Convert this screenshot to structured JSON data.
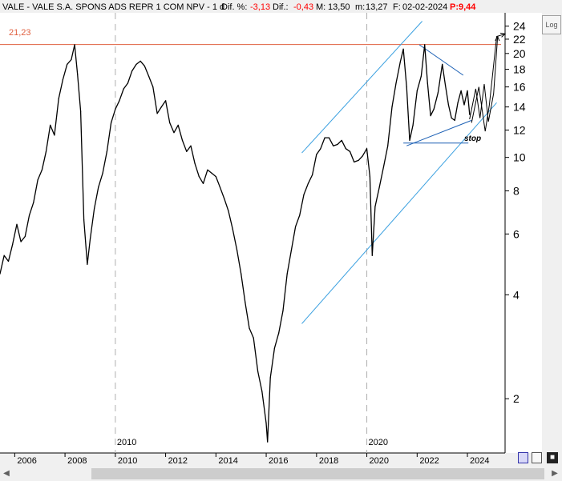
{
  "header": {
    "title": "VALE - VALE S.A. SPONS ADS REPR 1 COM NPV - 1 d",
    "dif_pct_label": "Dif. %:",
    "dif_pct_value": "-3,13",
    "dif_label": "Dif.:",
    "dif_value": "-0,43",
    "max_label": "M:",
    "max_value": "13,50",
    "min_label": "m:",
    "min_value": "13,27",
    "date_label": "F:",
    "date_value": "02-02-2024",
    "p_label": "P:",
    "p_value": "9,44"
  },
  "toolbar": {
    "log_label": "Log"
  },
  "annotations": {
    "resistance_label": "21,23",
    "stop_label": "stop"
  },
  "colors": {
    "price": "#000000",
    "resistance": "#e06040",
    "channel": "#3aa0e0",
    "triangle": "#1a5fb4",
    "header_red": "#ff0000"
  },
  "chart_data": {
    "type": "line",
    "title": "VALE - VALE S.A. SPONS ADS REPR 1 COM NPV - 1 d",
    "xlabel": "",
    "ylabel": "",
    "y_scale": "log",
    "ylim": [
      1.4,
      25
    ],
    "xlim": [
      "2005-06-01",
      "2025-07-01"
    ],
    "yticks": [
      2,
      4,
      6,
      8,
      10,
      12,
      14,
      16,
      18,
      20,
      22,
      24
    ],
    "xticks": [
      "2006",
      "2008",
      "2010",
      "2012",
      "2014",
      "2016",
      "2018",
      "2020",
      "2022",
      "2024"
    ],
    "year_markers": [
      "2010",
      "2020"
    ],
    "grid": false,
    "series": [
      {
        "x": [
          "2005-06-01",
          "2005-08-01",
          "2005-10-01",
          "2005-12-01",
          "2006-02-01",
          "2006-04-01",
          "2006-06-01",
          "2006-08-01",
          "2006-10-01",
          "2006-12-01",
          "2007-02-01",
          "2007-04-01",
          "2007-06-01",
          "2007-08-01",
          "2007-10-01",
          "2007-12-01",
          "2008-02-01",
          "2008-04-01",
          "2008-05-20",
          "2008-07-01",
          "2008-08-15",
          "2008-10-01",
          "2008-11-20",
          "2009-01-01",
          "2009-03-01",
          "2009-05-01",
          "2009-07-01",
          "2009-09-01",
          "2009-11-01",
          "2010-01-01",
          "2010-03-01",
          "2010-05-01",
          "2010-07-01",
          "2010-09-01",
          "2010-11-01",
          "2011-01-01",
          "2011-03-01",
          "2011-05-01",
          "2011-07-01",
          "2011-09-01",
          "2011-11-01",
          "2012-01-01",
          "2012-03-01",
          "2012-05-01",
          "2012-07-01",
          "2012-09-01",
          "2012-11-01",
          "2013-01-01",
          "2013-03-01",
          "2013-05-01",
          "2013-07-01",
          "2013-09-01",
          "2013-11-01",
          "2014-01-01",
          "2014-03-01",
          "2014-05-01",
          "2014-07-01",
          "2014-09-01",
          "2014-11-01",
          "2015-01-01",
          "2015-03-01",
          "2015-05-01",
          "2015-07-01",
          "2015-09-01",
          "2015-11-01",
          "2016-01-01",
          "2016-01-20",
          "2016-03-01",
          "2016-05-01",
          "2016-07-01",
          "2016-09-01",
          "2016-11-01",
          "2017-01-01",
          "2017-03-01",
          "2017-05-01",
          "2017-07-01",
          "2017-09-01",
          "2017-11-01",
          "2018-01-01",
          "2018-03-01",
          "2018-05-01",
          "2018-07-01",
          "2018-09-01",
          "2018-11-01",
          "2019-01-01",
          "2019-03-01",
          "2019-05-01",
          "2019-07-01",
          "2019-09-01",
          "2019-11-01",
          "2020-01-01",
          "2020-02-15",
          "2020-03-20",
          "2020-05-01",
          "2020-07-01",
          "2020-09-01",
          "2020-11-01",
          "2021-01-01",
          "2021-03-01",
          "2021-05-01",
          "2021-06-15",
          "2021-08-01",
          "2021-09-15",
          "2021-11-01",
          "2022-01-01",
          "2022-03-01",
          "2022-04-20",
          "2022-06-01",
          "2022-07-15",
          "2022-09-01",
          "2022-11-01",
          "2023-01-01",
          "2023-02-15",
          "2023-04-01",
          "2023-05-15",
          "2023-07-01",
          "2023-08-15",
          "2023-10-01",
          "2023-11-15",
          "2024-01-01",
          "2024-02-02"
        ],
        "y": [
          4.6,
          5.2,
          5.0,
          5.6,
          6.4,
          5.7,
          5.9,
          6.8,
          7.4,
          8.6,
          9.2,
          10.4,
          12.4,
          11.6,
          14.8,
          16.8,
          18.6,
          19.2,
          21.2,
          17.4,
          13.6,
          6.6,
          4.9,
          5.8,
          7.1,
          8.2,
          9.0,
          10.4,
          12.6,
          13.8,
          14.6,
          15.8,
          16.4,
          17.8,
          18.6,
          19.0,
          18.4,
          17.2,
          16.0,
          13.4,
          14.0,
          14.6,
          12.6,
          11.8,
          12.4,
          11.2,
          10.4,
          10.8,
          9.6,
          8.8,
          8.4,
          9.2,
          9.0,
          8.8,
          8.2,
          7.6,
          7.0,
          6.2,
          5.4,
          4.6,
          3.8,
          3.2,
          3.0,
          2.4,
          2.1,
          1.7,
          1.5,
          2.3,
          2.8,
          3.1,
          3.6,
          4.6,
          5.4,
          6.3,
          6.8,
          7.8,
          8.4,
          8.9,
          10.2,
          10.6,
          11.4,
          11.4,
          10.8,
          10.9,
          11.2,
          10.6,
          10.4,
          9.7,
          9.8,
          10.1,
          10.6,
          8.8,
          5.2,
          7.2,
          8.2,
          9.4,
          10.8,
          14.0,
          16.4,
          18.9,
          20.6,
          16.0,
          11.2,
          12.4,
          15.6,
          17.2,
          21.2,
          16.4,
          13.2,
          13.8,
          15.4,
          18.6,
          16.2,
          14.2,
          13.0,
          12.8,
          14.4,
          15.6,
          14.2,
          15.6,
          13.3
        ]
      }
    ],
    "annotation_lines": [
      {
        "name": "resistance",
        "type": "horizontal",
        "y": 21.23
      },
      {
        "name": "channel-upper",
        "x": [
          "2017-06-01",
          "2022-03-15"
        ],
        "y": [
          10.3,
          24.8
        ]
      },
      {
        "name": "channel-lower",
        "x": [
          "2017-06-01",
          "2025-03-01"
        ],
        "y": [
          3.3,
          14.4
        ]
      },
      {
        "name": "triangle-upper",
        "x": [
          "2022-02-01",
          "2023-11-01"
        ],
        "y": [
          21.2,
          17.3
        ]
      },
      {
        "name": "triangle-lower",
        "x": [
          "2021-08-01",
          "2024-03-01"
        ],
        "y": [
          10.8,
          12.8
        ]
      },
      {
        "name": "stop-level",
        "x": [
          "2021-06-15",
          "2024-01-15"
        ],
        "y": [
          11.0,
          11.0
        ]
      },
      {
        "name": "projection-a",
        "x": [
          "2024-02-01",
          "2024-05-01",
          "2024-07-01",
          "2024-09-01",
          "2024-11-01",
          "2025-01-15",
          "2025-03-15"
        ],
        "y": [
          12.9,
          15.8,
          13.0,
          16.3,
          12.7,
          15.3,
          22.4
        ]
      },
      {
        "name": "projection-b",
        "x": [
          "2024-03-01",
          "2024-06-15",
          "2024-09-15",
          "2024-11-15",
          "2025-03-01",
          "2025-07-01"
        ],
        "y": [
          12.6,
          16.0,
          11.9,
          14.2,
          22.4,
          22.8
        ]
      }
    ]
  }
}
